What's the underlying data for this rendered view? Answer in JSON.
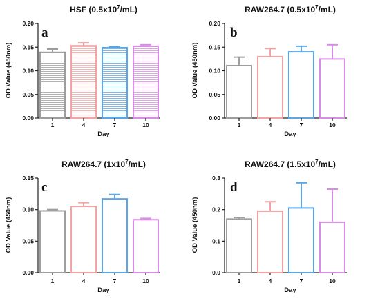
{
  "colors": [
    "#9e9e9e",
    "#f4a3a3",
    "#5aa6e8",
    "#d98be8"
  ],
  "chart_data": [
    {
      "type": "bar",
      "letter": "a",
      "title_main": "HSF (0.5x10",
      "title_sup": "7",
      "title_tail": "/mL)",
      "categories": [
        "1",
        "4",
        "7",
        "10"
      ],
      "values": [
        0.139,
        0.153,
        0.149,
        0.152
      ],
      "errors": [
        0.007,
        0.006,
        0.002,
        0.003
      ],
      "xlabel": "Day",
      "ylabel": "OD Value (450nm)",
      "ylim": [
        0,
        0.2
      ],
      "yticks": [
        "0.00",
        "0.05",
        "0.10",
        "0.15",
        "0.20"
      ],
      "pattern": "hatched"
    },
    {
      "type": "bar",
      "letter": "b",
      "title_main": "RAW264.7 (0.5x10",
      "title_sup": "7",
      "title_tail": "/mL)",
      "categories": [
        "1",
        "4",
        "7",
        "10"
      ],
      "values": [
        0.111,
        0.13,
        0.14,
        0.125
      ],
      "errors": [
        0.018,
        0.017,
        0.012,
        0.03
      ],
      "xlabel": "Day",
      "ylabel": "OD Value (450nm)",
      "ylim": [
        0,
        0.2
      ],
      "yticks": [
        "0.00",
        "0.05",
        "0.10",
        "0.15",
        "0.20"
      ],
      "pattern": "open"
    },
    {
      "type": "bar",
      "letter": "c",
      "title_main": "RAW264.7 (1x10",
      "title_sup": "7",
      "title_tail": "/mL)",
      "categories": [
        "1",
        "4",
        "7",
        "10"
      ],
      "values": [
        0.098,
        0.105,
        0.117,
        0.084
      ],
      "errors": [
        0.002,
        0.006,
        0.007,
        0.002
      ],
      "xlabel": "Day",
      "ylabel": "OD Value (450nm)",
      "ylim": [
        0,
        0.15
      ],
      "yticks": [
        "0.00",
        "0.05",
        "0.10",
        "0.15"
      ],
      "pattern": "open"
    },
    {
      "type": "bar",
      "letter": "d",
      "title_main": "RAW264.7 (1.5x10",
      "title_sup": "7",
      "title_tail": "/mL)",
      "categories": [
        "1",
        "4",
        "7",
        "10"
      ],
      "values": [
        0.17,
        0.195,
        0.205,
        0.16
      ],
      "errors": [
        0.005,
        0.03,
        0.08,
        0.105
      ],
      "xlabel": "Day",
      "ylabel": "OD Value (450nm)",
      "ylim": [
        0,
        0.3
      ],
      "yticks": [
        "0.0",
        "0.1",
        "0.2",
        "0.3"
      ],
      "pattern": "open"
    }
  ]
}
